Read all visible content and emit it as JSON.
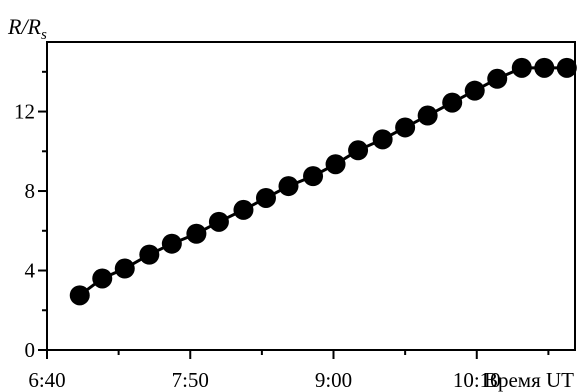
{
  "chart_data": {
    "type": "line",
    "ylabel": {
      "main": "R/R",
      "subscript": "s"
    },
    "xlabel": "Время UT",
    "xlim": [
      "6:40",
      "10:58"
    ],
    "ylim": [
      0,
      15.5
    ],
    "x_ticks": [
      {
        "time": "6:40",
        "label": "6:40"
      },
      {
        "time": "7:15",
        "label": ""
      },
      {
        "time": "7:50",
        "label": "7:50"
      },
      {
        "time": "8:25",
        "label": ""
      },
      {
        "time": "9:00",
        "label": "9:00"
      },
      {
        "time": "9:35",
        "label": ""
      },
      {
        "time": "10:10",
        "label": "10:10"
      },
      {
        "time": "10:45",
        "label": ""
      }
    ],
    "y_ticks": [
      {
        "value": 0,
        "label": "0"
      },
      {
        "value": 2,
        "label": ""
      },
      {
        "value": 4,
        "label": "4"
      },
      {
        "value": 6,
        "label": ""
      },
      {
        "value": 8,
        "label": "8"
      },
      {
        "value": 10,
        "label": ""
      },
      {
        "value": 12,
        "label": "12"
      },
      {
        "value": 14,
        "label": ""
      }
    ],
    "grid": false,
    "legend": "none",
    "marker_color": "#000000",
    "series": [
      {
        "x": [
          "6:56",
          "7:07",
          "7:18",
          "7:30",
          "7:41",
          "7:53",
          "8:04",
          "8:16",
          "8:27",
          "8:38",
          "8:50",
          "9:01",
          "9:12",
          "9:24",
          "9:35",
          "9:46",
          "9:58",
          "10:09",
          "10:20",
          "10:32",
          "10:43",
          "10:54"
        ],
        "y": [
          2.75,
          3.6,
          4.1,
          4.8,
          5.35,
          5.85,
          6.45,
          7.05,
          7.65,
          8.25,
          8.75,
          9.35,
          10.05,
          10.6,
          11.2,
          11.8,
          12.45,
          13.05,
          13.65,
          14.2,
          14.2,
          14.2
        ]
      }
    ]
  }
}
